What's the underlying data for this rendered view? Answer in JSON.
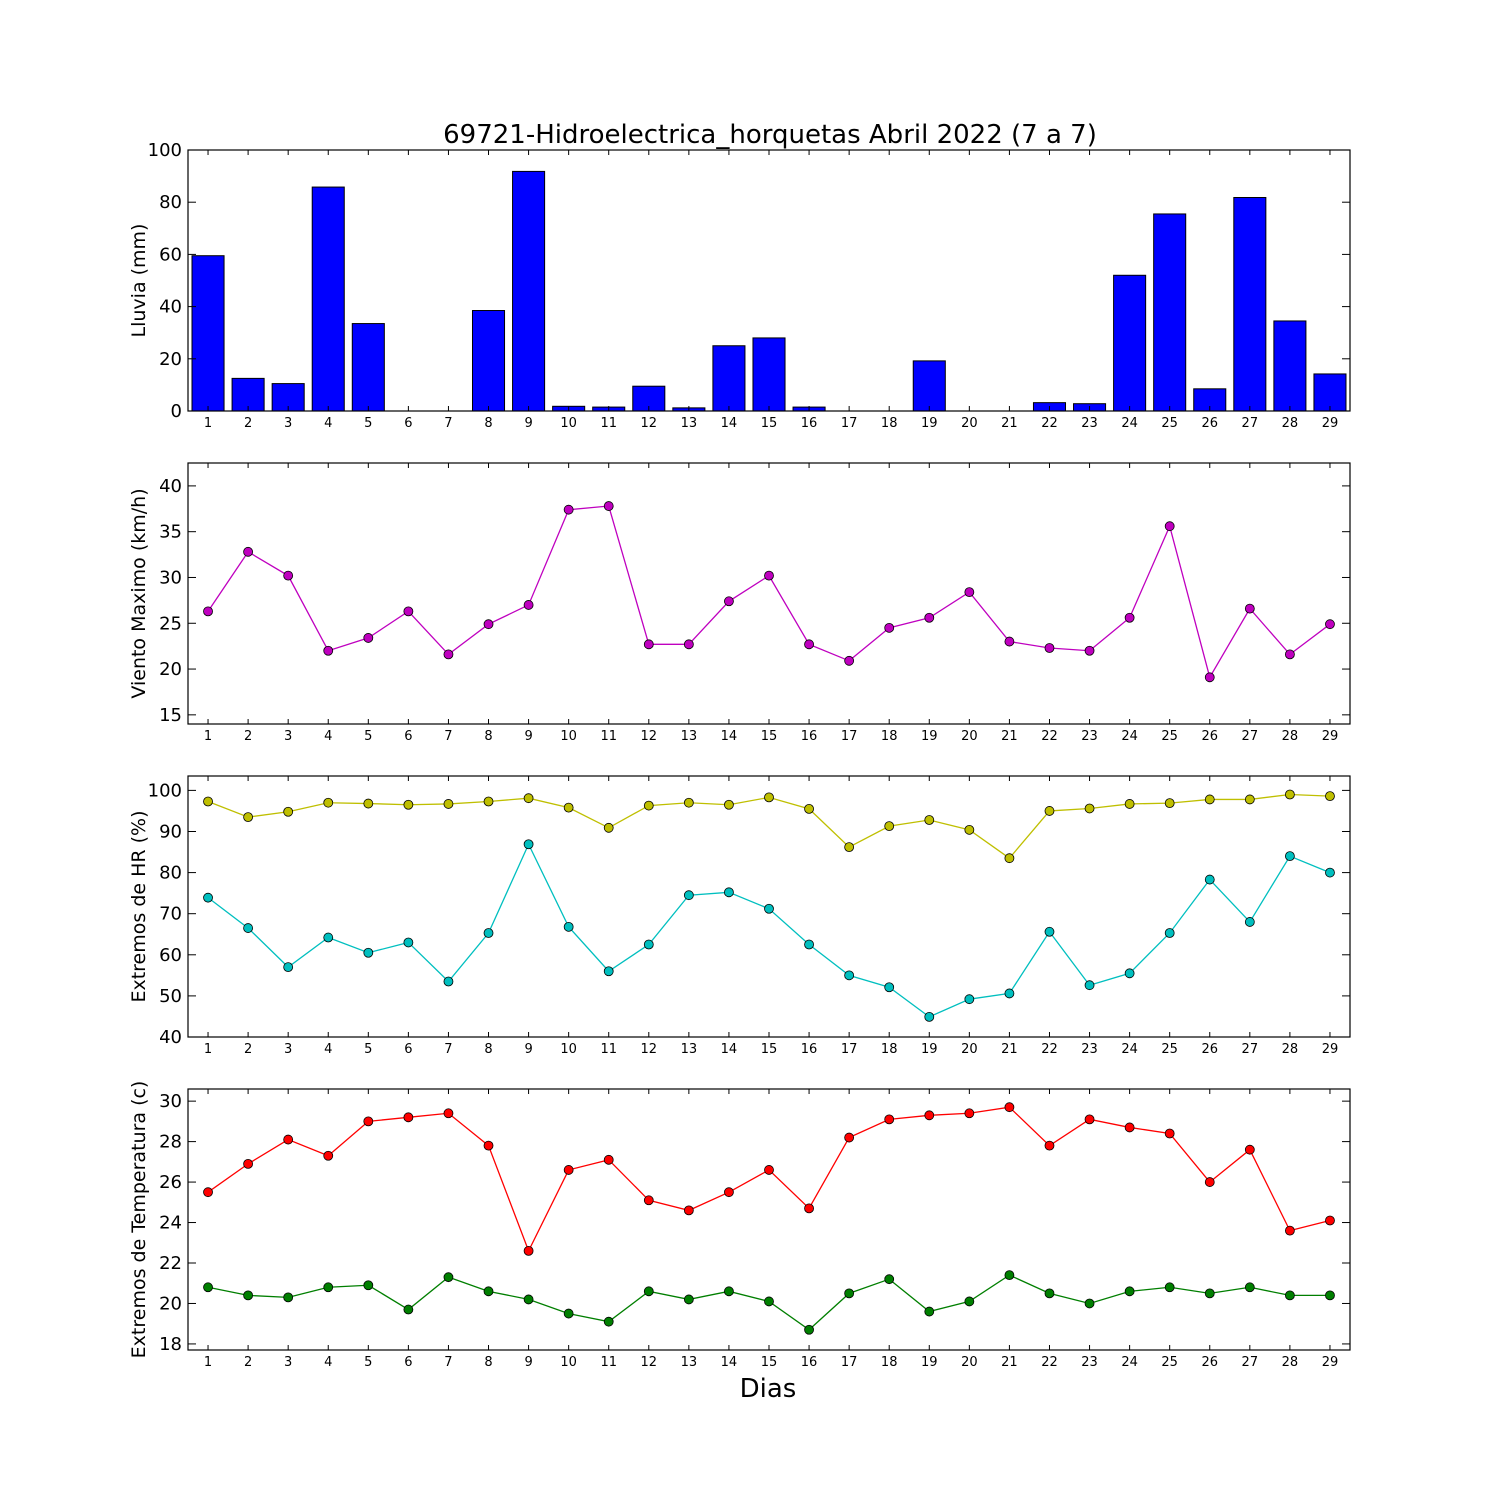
{
  "chart_data": [
    {
      "type": "bar",
      "title": "69721-Hidroelectrica_horquetas Abril 2022  (7 a 7)",
      "xlabel": "",
      "ylabel": "Lluvia (mm)",
      "ylim": [
        0,
        100
      ],
      "yticks": [
        0,
        20,
        40,
        60,
        80,
        100
      ],
      "categories": [
        "1",
        "2",
        "3",
        "4",
        "5",
        "6",
        "7",
        "8",
        "9",
        "10",
        "11",
        "12",
        "13",
        "14",
        "15",
        "16",
        "17",
        "18",
        "19",
        "20",
        "21",
        "22",
        "23",
        "24",
        "25",
        "26",
        "27",
        "28",
        "29"
      ],
      "series": [
        {
          "values": [
            59.5,
            12.5,
            10.5,
            85.8,
            33.5,
            0,
            0,
            38.5,
            91.8,
            1.8,
            1.5,
            9.5,
            1.2,
            25,
            28,
            1.5,
            0,
            0,
            19.2,
            0,
            0,
            3.2,
            2.8,
            52,
            75.5,
            8.5,
            81.8,
            34.5,
            14.2
          ],
          "color": "#0000ff"
        }
      ]
    },
    {
      "type": "line",
      "title": "",
      "xlabel": "",
      "ylabel": "Viento Maximo (km/h)",
      "ylim": [
        14,
        42.5
      ],
      "yticks": [
        15,
        20,
        25,
        30,
        35,
        40
      ],
      "categories": [
        "1",
        "2",
        "3",
        "4",
        "5",
        "6",
        "7",
        "8",
        "9",
        "10",
        "11",
        "12",
        "13",
        "14",
        "15",
        "16",
        "17",
        "18",
        "19",
        "20",
        "21",
        "22",
        "23",
        "24",
        "25",
        "26",
        "27",
        "28",
        "29"
      ],
      "series": [
        {
          "values": [
            26.3,
            32.8,
            30.2,
            22,
            23.4,
            26.3,
            21.6,
            24.9,
            27,
            37.4,
            37.8,
            22.7,
            22.7,
            27.4,
            30.2,
            22.7,
            20.9,
            24.5,
            25.6,
            28.4,
            23,
            22.3,
            22,
            25.6,
            35.6,
            19.1,
            26.6,
            21.6,
            24.9
          ],
          "color": "#bf00bf"
        }
      ]
    },
    {
      "type": "line",
      "title": "",
      "xlabel": "",
      "ylabel": "Extremos de HR (%)",
      "ylim": [
        40,
        103.5
      ],
      "yticks": [
        40,
        50,
        60,
        70,
        80,
        90,
        100
      ],
      "categories": [
        "1",
        "2",
        "3",
        "4",
        "5",
        "6",
        "7",
        "8",
        "9",
        "10",
        "11",
        "12",
        "13",
        "14",
        "15",
        "16",
        "17",
        "18",
        "19",
        "20",
        "21",
        "22",
        "23",
        "24",
        "25",
        "26",
        "27",
        "28",
        "29"
      ],
      "series": [
        {
          "values": [
            97.3,
            93.5,
            94.8,
            97,
            96.8,
            96.5,
            96.7,
            97.3,
            98.1,
            95.8,
            90.9,
            96.3,
            97,
            96.5,
            98.3,
            95.5,
            86.2,
            91.3,
            92.8,
            90.4,
            83.5,
            95,
            95.6,
            96.7,
            96.9,
            97.8,
            97.8,
            99,
            98.6
          ],
          "color": "#bfbf00"
        },
        {
          "values": [
            73.9,
            66.5,
            57,
            64.2,
            60.5,
            63,
            53.5,
            65.3,
            86.9,
            66.8,
            56,
            62.5,
            74.5,
            75.2,
            71.2,
            62.5,
            55,
            52.1,
            44.9,
            49.2,
            50.6,
            65.6,
            52.6,
            55.5,
            65.3,
            78.3,
            68,
            84,
            80
          ],
          "color": "#00bfbf"
        }
      ]
    },
    {
      "type": "line",
      "title": "",
      "xlabel": "Dias",
      "ylabel": "Extremos de Temperatura (c)",
      "ylim": [
        17.7,
        30.6
      ],
      "yticks": [
        18,
        20,
        22,
        24,
        26,
        28,
        30
      ],
      "categories": [
        "1",
        "2",
        "3",
        "4",
        "5",
        "6",
        "7",
        "8",
        "9",
        "10",
        "11",
        "12",
        "13",
        "14",
        "15",
        "16",
        "17",
        "18",
        "19",
        "20",
        "21",
        "22",
        "23",
        "24",
        "25",
        "26",
        "27",
        "28",
        "29"
      ],
      "series": [
        {
          "values": [
            25.5,
            26.9,
            28.1,
            27.3,
            29,
            29.2,
            29.4,
            27.8,
            22.6,
            26.6,
            27.1,
            25.1,
            24.6,
            25.5,
            26.6,
            24.7,
            28.2,
            29.1,
            29.3,
            29.4,
            29.7,
            27.8,
            29.1,
            28.7,
            28.4,
            26,
            27.6,
            23.6,
            24.1
          ],
          "color": "#ff0000"
        },
        {
          "values": [
            20.8,
            20.4,
            20.3,
            20.8,
            20.9,
            19.7,
            21.3,
            20.6,
            20.2,
            19.5,
            19.1,
            20.6,
            20.2,
            20.6,
            20.1,
            18.7,
            20.5,
            21.2,
            19.6,
            20.1,
            21.4,
            20.5,
            20,
            20.6,
            20.8,
            20.5,
            20.8,
            20.4,
            20.4
          ],
          "color": "#007f00"
        }
      ]
    }
  ]
}
